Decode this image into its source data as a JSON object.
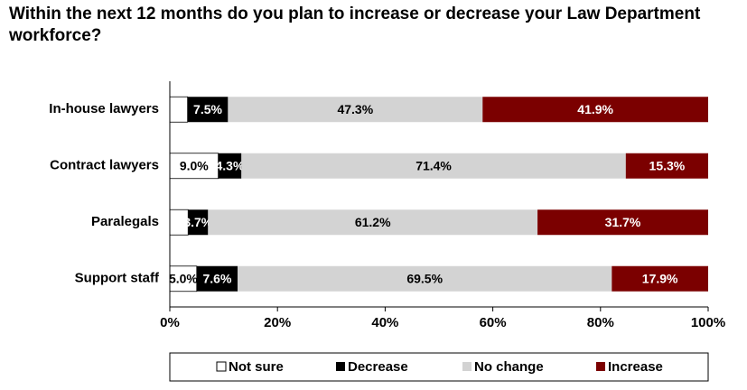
{
  "chart_data": {
    "type": "stacked_bar_horizontal",
    "title": "Within the next 12 months do you plan to increase or decrease your Law Department workforce?",
    "categories": [
      "In-house lawyers",
      "Contract lawyers",
      "Paralegals",
      "Support staff"
    ],
    "series": [
      {
        "name": "Not sure",
        "color": "#ffffff",
        "values": [
          3.3,
          9.0,
          3.4,
          5.0
        ],
        "value_labels": [
          null,
          "9.0%",
          null,
          "5.0%"
        ]
      },
      {
        "name": "Decrease",
        "color": "#000000",
        "values": [
          7.5,
          4.3,
          3.7,
          7.6
        ],
        "value_labels": [
          "7.5%",
          "4.3%",
          "3.7%",
          "7.6%"
        ]
      },
      {
        "name": "No change",
        "color": "#d3d3d3",
        "values": [
          47.3,
          71.4,
          61.2,
          69.5
        ],
        "value_labels": [
          "47.3%",
          "71.4%",
          "61.2%",
          "69.5%"
        ]
      },
      {
        "name": "Increase",
        "color": "#7b0000",
        "values": [
          41.9,
          15.3,
          31.7,
          17.9
        ],
        "value_labels": [
          "41.9%",
          "15.3%",
          "31.7%",
          "17.9%"
        ]
      }
    ],
    "xlim": [
      0,
      100
    ],
    "xticks": [
      {
        "value": 0,
        "label": "0%"
      },
      {
        "value": 20,
        "label": "20%"
      },
      {
        "value": 40,
        "label": "40%"
      },
      {
        "value": 60,
        "label": "60%"
      },
      {
        "value": 80,
        "label": "80%"
      },
      {
        "value": 100,
        "label": "100%"
      }
    ],
    "legend": "bottom"
  }
}
